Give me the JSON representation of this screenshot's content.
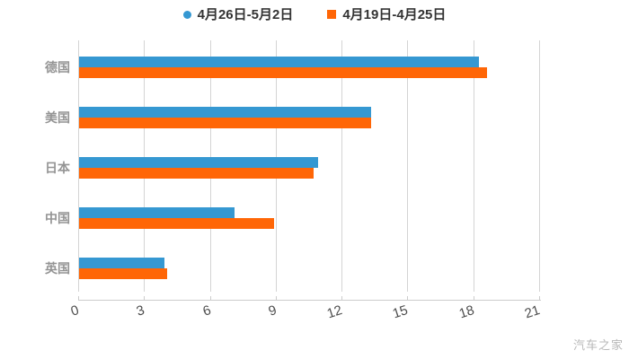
{
  "legend": {
    "items": [
      {
        "label": "4月26日-5月2日",
        "color": "#3598D2",
        "shape": "circle"
      },
      {
        "label": "4月19日-4月25日",
        "color": "#FF6606",
        "shape": "square"
      }
    ]
  },
  "chart_data": {
    "type": "bar",
    "orientation": "horizontal",
    "title": "",
    "xlabel": "",
    "ylabel": "",
    "categories": [
      "德国",
      "美国",
      "日本",
      "中国",
      "英国"
    ],
    "series": [
      {
        "name": "4月26日-5月2日",
        "color": "#3598D2",
        "values": [
          18.2,
          13.3,
          10.9,
          7.1,
          3.9
        ]
      },
      {
        "name": "4月19日-4月25日",
        "color": "#FF6606",
        "values": [
          18.6,
          13.3,
          10.7,
          8.9,
          4.0
        ]
      }
    ],
    "xlim": [
      0,
      21
    ],
    "xticks": [
      "0",
      "3",
      "6",
      "9",
      "12",
      "15",
      "18",
      "21"
    ],
    "grid": true,
    "legend_position": "top",
    "category_label_color": "#949494",
    "tick_label_color": "#4d4d4d",
    "gridline_color": "#d4d4d4"
  },
  "watermark": {
    "text": "汽车之家"
  }
}
